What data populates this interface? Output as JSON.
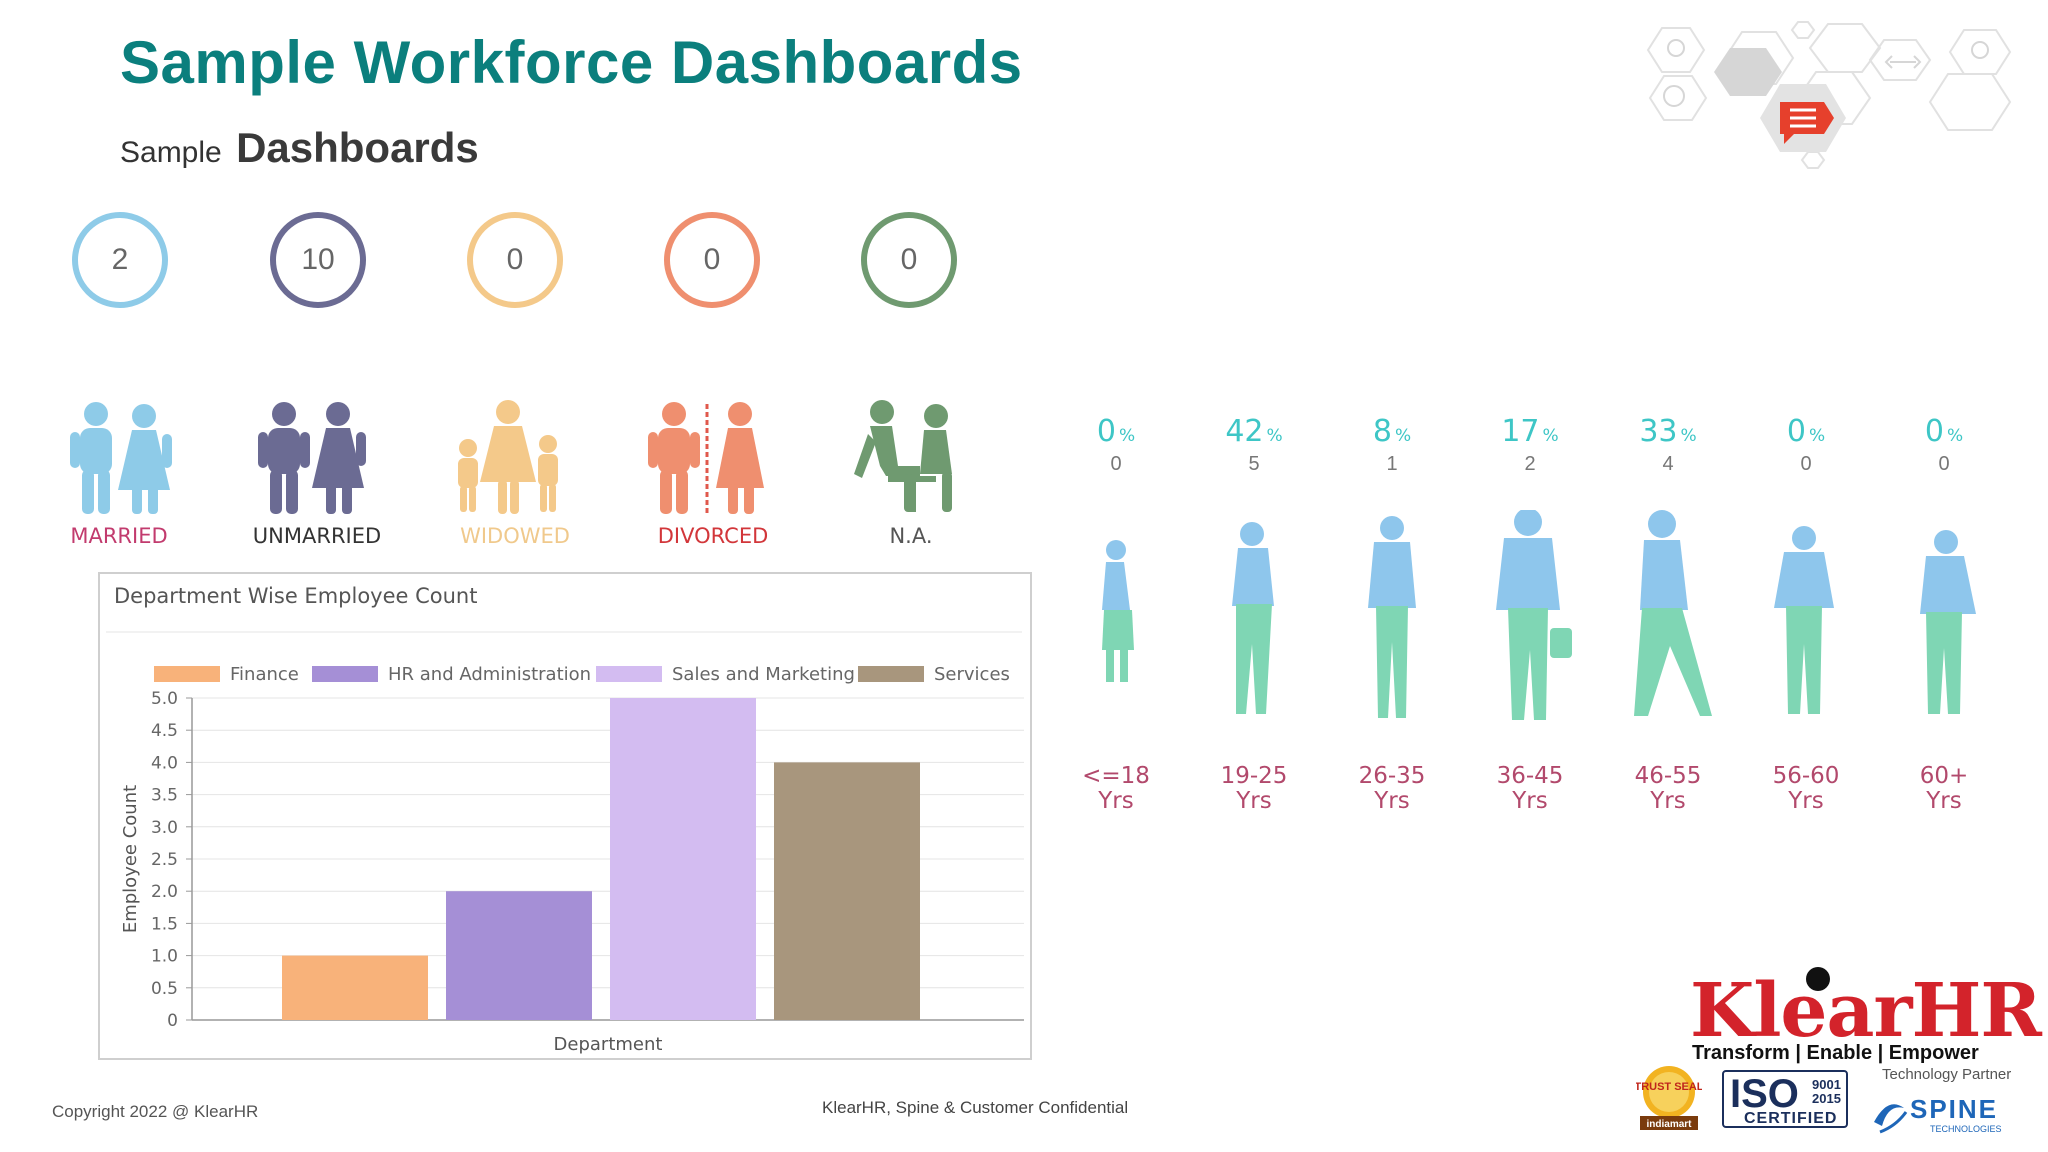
{
  "header": {
    "title": "Sample Workforce Dashboards",
    "subtitle_prefix": "Sample",
    "subtitle_main": "Dashboards"
  },
  "marital": [
    {
      "count": "2",
      "label": "MARRIED",
      "color": "#8ecbe8",
      "label_color": "#c23b6e",
      "icon": "married-couple-icon"
    },
    {
      "count": "10",
      "label": "UNMARRIED",
      "color": "#6b6b93",
      "label_color": "#333333",
      "icon": "unmarried-couple-icon"
    },
    {
      "count": "0",
      "label": "WIDOWED",
      "color": "#f4c98a",
      "label_color": "#f0c98c",
      "icon": "widowed-family-icon"
    },
    {
      "count": "0",
      "label": "DIVORCED",
      "color": "#ef8f6f",
      "label_color": "#d2363a",
      "icon": "divorced-couple-icon"
    },
    {
      "count": "0",
      "label": "N.A.",
      "color": "#6f9a70",
      "label_color": "#555555",
      "icon": "seated-couple-icon"
    }
  ],
  "chart": {
    "title": "Department Wise Employee Count",
    "legend": [
      "Finance",
      "HR and Administration",
      "Sales and Marketing",
      "Services"
    ]
  },
  "chart_data": {
    "type": "bar",
    "categories": [
      "Finance",
      "HR and Administration",
      "Sales and Marketing",
      "Services"
    ],
    "values": [
      1,
      2,
      5,
      4
    ],
    "colors": [
      "#f8b27a",
      "#a58fd6",
      "#d3bcf1",
      "#a8967d"
    ],
    "title": "Department Wise Employee Count",
    "xlabel": "Department",
    "ylabel": "Employee Count",
    "ylim": [
      0,
      5
    ],
    "yticks": [
      "5.0",
      "4.5",
      "4.0",
      "3.5",
      "3.0",
      "2.5",
      "2.0",
      "1.5",
      "1.0",
      "0.5",
      "0"
    ],
    "grid": true,
    "legend_position": "top"
  },
  "age_groups": [
    {
      "pct": "0",
      "count": "0",
      "label_line1": "<=18",
      "label_line2": "Yrs",
      "icon": "child-silhouette-icon"
    },
    {
      "pct": "42",
      "count": "5",
      "label_line1": "19-25",
      "label_line2": "Yrs",
      "icon": "young-person-silhouette-icon"
    },
    {
      "pct": "8",
      "count": "1",
      "label_line1": "26-35",
      "label_line2": "Yrs",
      "icon": "suited-man-silhouette-icon"
    },
    {
      "pct": "17",
      "count": "2",
      "label_line1": "36-45",
      "label_line2": "Yrs",
      "icon": "man-with-bag-silhouette-icon"
    },
    {
      "pct": "33",
      "count": "4",
      "label_line1": "46-55",
      "label_line2": "Yrs",
      "icon": "walking-man-silhouette-icon"
    },
    {
      "pct": "0",
      "count": "0",
      "label_line1": "56-60",
      "label_line2": "Yrs",
      "icon": "older-man-silhouette-icon"
    },
    {
      "pct": "0",
      "count": "0",
      "label_line1": "60+",
      "label_line2": "Yrs",
      "icon": "elderly-man-silhouette-icon"
    }
  ],
  "pct_symbol": "%",
  "footer": {
    "copyright": "Copyright 2022 @ KlearHR",
    "confidential": "KlearHR, Spine & Customer Confidential"
  },
  "brand": {
    "name": "KlearHR",
    "tagline": "Transform | Enable | Empower",
    "tech_partner": "Technology Partner",
    "iso": "ISO",
    "iso_num1": "9001",
    "iso_num2": "2015",
    "iso_certified": "CERTIFIED",
    "trust_seal": "TRUST SEAL",
    "trust_sub": "indiamart",
    "spine": "SPINE",
    "spine_sub": "TECHNOLOGIES"
  },
  "colors": {
    "title": "#0b7f7d",
    "age_top": "#8ec6ec",
    "age_bottom": "#7fd6b4",
    "age_label": "#b2496c",
    "pct": "#3ec6c6"
  }
}
